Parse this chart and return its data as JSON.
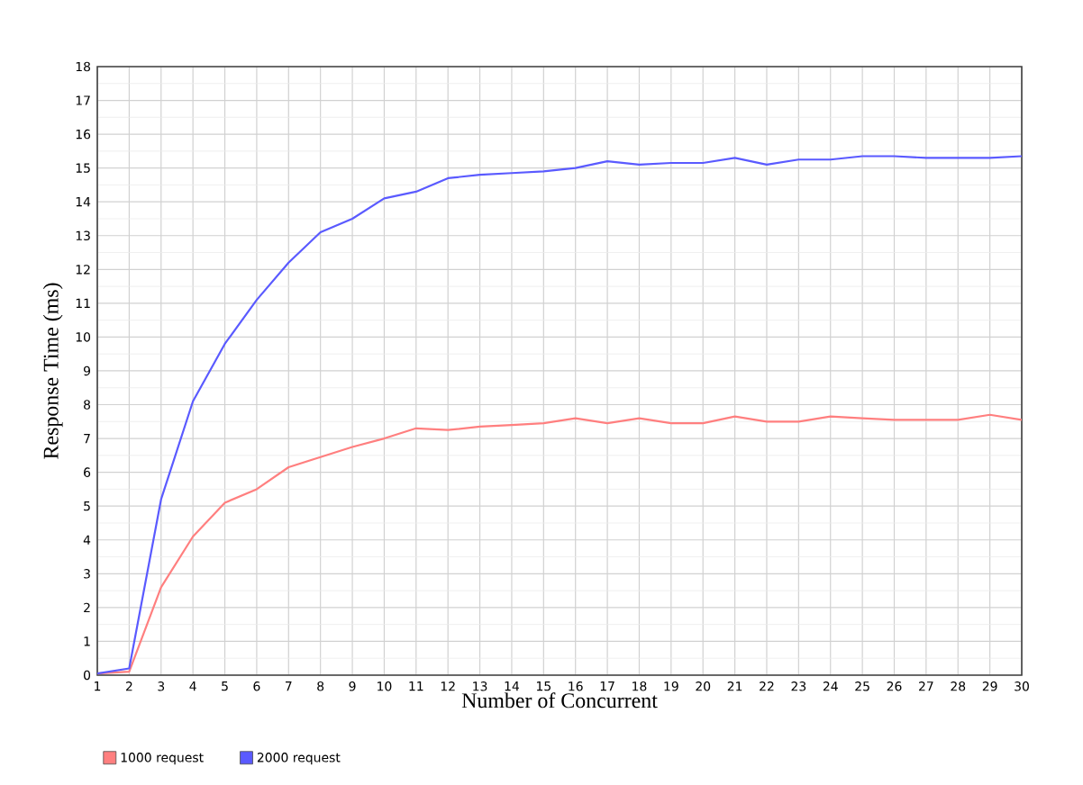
{
  "chart_data": {
    "type": "line",
    "xlabel": "Number of Concurrent",
    "ylabel": "Response Time (ms)",
    "x": [
      1,
      2,
      3,
      4,
      5,
      6,
      7,
      8,
      9,
      10,
      11,
      12,
      13,
      14,
      15,
      16,
      17,
      18,
      19,
      20,
      21,
      22,
      23,
      24,
      25,
      26,
      27,
      28,
      29,
      30
    ],
    "xlim": [
      1,
      30
    ],
    "xticks": [
      1,
      2,
      3,
      4,
      5,
      6,
      7,
      8,
      9,
      10,
      11,
      12,
      13,
      14,
      15,
      16,
      17,
      18,
      19,
      20,
      21,
      22,
      23,
      24,
      25,
      26,
      27,
      28,
      29,
      30
    ],
    "ylim": [
      0,
      18
    ],
    "yticks": [
      0,
      1,
      2,
      3,
      4,
      5,
      6,
      7,
      8,
      9,
      10,
      11,
      12,
      13,
      14,
      15,
      16,
      17,
      18
    ],
    "grid": true,
    "legend": "bottom",
    "series": [
      {
        "name": "1000 request",
        "color": "#ff7f7f",
        "values": [
          0.05,
          0.1,
          2.6,
          4.1,
          5.1,
          5.5,
          6.15,
          6.45,
          6.75,
          7.0,
          7.3,
          7.25,
          7.35,
          7.4,
          7.45,
          7.6,
          7.45,
          7.6,
          7.45,
          7.45,
          7.65,
          7.5,
          7.5,
          7.65,
          7.6,
          7.55,
          7.55,
          7.55,
          7.7,
          7.55
        ]
      },
      {
        "name": "2000 request",
        "color": "#5a5aff",
        "values": [
          0.05,
          0.2,
          5.2,
          8.1,
          9.8,
          11.1,
          12.2,
          13.1,
          13.5,
          14.1,
          14.3,
          14.7,
          14.8,
          14.85,
          14.9,
          15.0,
          15.2,
          15.1,
          15.15,
          15.15,
          15.3,
          15.1,
          15.25,
          15.25,
          15.35,
          15.35,
          15.3,
          15.3,
          15.3,
          15.35
        ]
      }
    ]
  }
}
